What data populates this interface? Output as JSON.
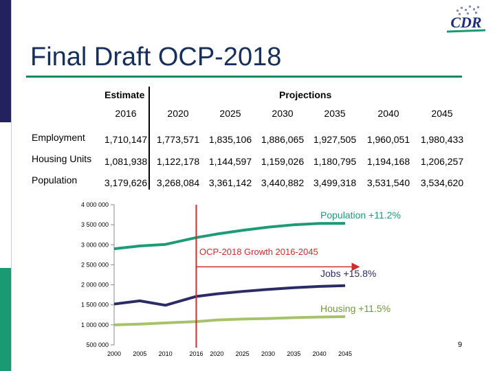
{
  "slide": {
    "title": "Final Draft OCP-2018",
    "page_number": "9",
    "logo_text": "CDR",
    "colors": {
      "navy": "#23225e",
      "teal": "#1a9a72",
      "title": "#16305a",
      "population": "#1c9b77",
      "employment": "#2b2b66",
      "housing": "#a6c36b",
      "marker": "#d32a2a"
    }
  },
  "table": {
    "header_estimate": "Estimate",
    "header_projections": "Projections",
    "years": [
      "2016",
      "2020",
      "2025",
      "2030",
      "2035",
      "2040",
      "2045"
    ],
    "rows": [
      {
        "label": "Employment",
        "values": [
          "1,710,147",
          "1,773,571",
          "1,835,106",
          "1,886,065",
          "1,927,505",
          "1,960,051",
          "1,980,433"
        ]
      },
      {
        "label": "Housing Units",
        "values": [
          "1,081,938",
          "1,122,178",
          "1,144,597",
          "1,159,026",
          "1,180,795",
          "1,194,168",
          "1,206,257"
        ]
      },
      {
        "label": "Population",
        "values": [
          "3,179,626",
          "3,268,084",
          "3,361,142",
          "3,440,882",
          "3,499,318",
          "3,531,540",
          "3,534,620"
        ]
      }
    ]
  },
  "chart_data": {
    "type": "line",
    "x": [
      2000,
      2005,
      2010,
      2016,
      2020,
      2025,
      2030,
      2035,
      2040,
      2045
    ],
    "x_tick_labels": [
      "2000",
      "2005",
      "2010",
      "2016",
      "2020",
      "2025",
      "2030",
      "2035",
      "2040",
      "2045"
    ],
    "y_tick_labels": [
      "4 000 000",
      "3 500 000",
      "3 000 000",
      "2 500 000",
      "2 000 000",
      "1 500 000",
      "1 000 000",
      "500 000"
    ],
    "y_ticks": [
      4000000,
      3500000,
      3000000,
      2500000,
      2000000,
      1500000,
      1000000,
      500000
    ],
    "ylim": [
      500000,
      4000000
    ],
    "series": [
      {
        "name": "Population",
        "values": [
          2900000,
          2970000,
          3010000,
          3179626,
          3268084,
          3361142,
          3440882,
          3499318,
          3531540,
          3534620
        ]
      },
      {
        "name": "Employment",
        "values": [
          1520000,
          1600000,
          1490000,
          1710147,
          1773571,
          1835106,
          1886065,
          1927505,
          1960051,
          1980433
        ]
      },
      {
        "name": "Housing",
        "values": [
          1000000,
          1020000,
          1050000,
          1081938,
          1122178,
          1144597,
          1159026,
          1180795,
          1194168,
          1206257
        ]
      }
    ],
    "marker_year": 2016,
    "annotations": {
      "population": "Population +11.2%",
      "growth": "OCP-2018 Growth 2016-2045",
      "jobs": "Jobs +15.8%",
      "housing": "Housing +11.5%"
    }
  }
}
